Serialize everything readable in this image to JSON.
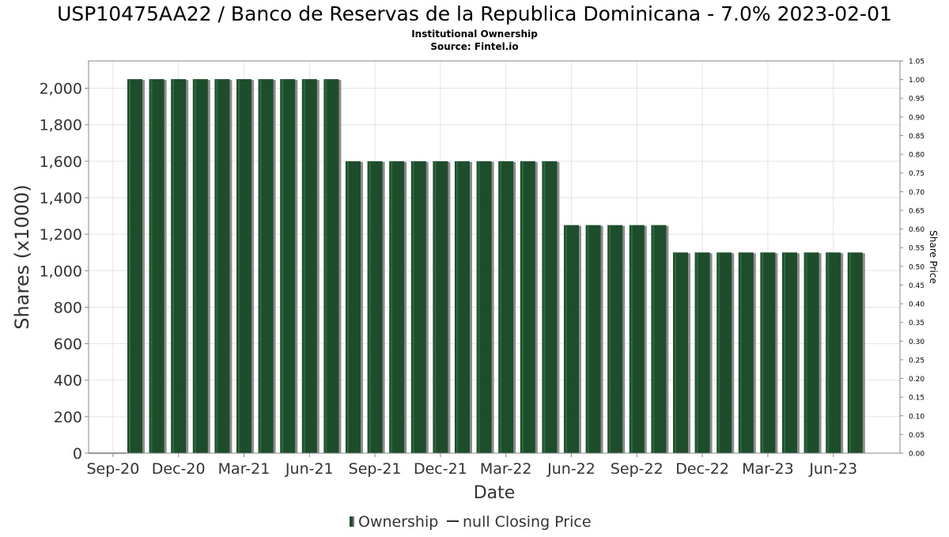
{
  "chart_data": {
    "type": "bar",
    "title": "USP10475AA22 / Banco de Reservas de la Republica Dominicana - 7.0% 2023-02-01",
    "subtitle_lines": [
      "Institutional Ownership",
      "Source: Fintel.io"
    ],
    "xlabel": "Date",
    "ylabel": "Shares (x1000)",
    "y2label": "Share Price",
    "ylim": [
      0,
      2150
    ],
    "y_ticks": [
      0,
      200,
      400,
      600,
      800,
      1000,
      1200,
      1400,
      1600,
      1800,
      2000
    ],
    "y_tick_labels": [
      "0",
      "200",
      "400",
      "600",
      "800",
      "1,000",
      "1,200",
      "1,400",
      "1,600",
      "1,800",
      "2,000"
    ],
    "y2lim": [
      0,
      1.05
    ],
    "y2_ticks": [
      "0.00",
      "0.05",
      "0.10",
      "0.15",
      "0.20",
      "0.25",
      "0.30",
      "0.35",
      "0.40",
      "0.45",
      "0.50",
      "0.55",
      "0.60",
      "0.65",
      "0.70",
      "0.75",
      "0.80",
      "0.85",
      "0.90",
      "0.95",
      "1.00",
      "1.05"
    ],
    "x_tick_labels": [
      "Sep-20",
      "Dec-20",
      "Mar-21",
      "Jun-21",
      "Sep-21",
      "Dec-21",
      "Mar-22",
      "Jun-22",
      "Sep-22",
      "Dec-22",
      "Mar-23",
      "Jun-23"
    ],
    "grid": true,
    "legend_position": "bottom",
    "series": [
      {
        "name": "Ownership",
        "color": "#1e4d2b",
        "values": [
          2050,
          2050,
          2050,
          2050,
          2050,
          2050,
          2050,
          2050,
          2050,
          2050,
          1600,
          1600,
          1600,
          1600,
          1600,
          1600,
          1600,
          1600,
          1600,
          1600,
          1250,
          1250,
          1250,
          1250,
          1250,
          1100,
          1100,
          1100,
          1100,
          1100,
          1100,
          1100,
          1100,
          1100
        ]
      },
      {
        "name": "null Closing Price",
        "color": "#333333",
        "values": []
      }
    ]
  }
}
